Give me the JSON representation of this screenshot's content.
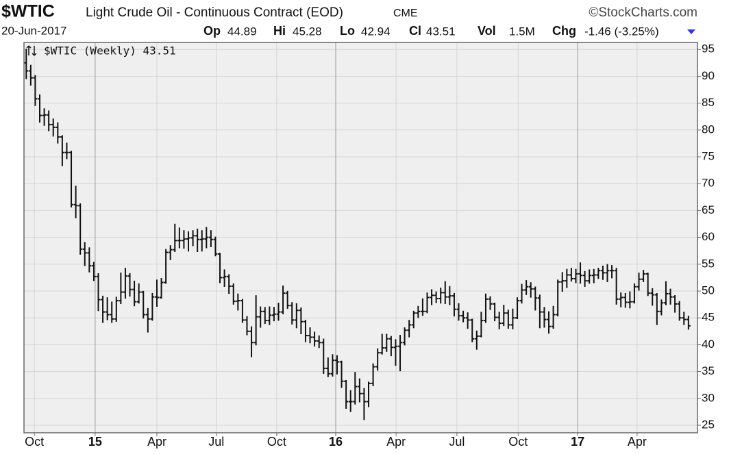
{
  "chart_data": {
    "type": "ohlc",
    "symbol": "$WTIC",
    "title": "Light Crude Oil - Continuous Contract (EOD)",
    "exchange": "CME",
    "source": "©StockCharts.com",
    "quote": {
      "date": "20-Jun-2017",
      "items": [
        {
          "label": "Op",
          "value": 44.89
        },
        {
          "label": "Hi",
          "value": 45.28
        },
        {
          "label": "Lo",
          "value": 42.94
        },
        {
          "label": "Cl",
          "value": 43.51
        },
        {
          "label": "Vol",
          "value": "1.5M"
        },
        {
          "label": "Chg",
          "value": "-1.46 (-3.25%)"
        }
      ]
    },
    "legend": "$WTIC (Weekly) 43.51",
    "color": "#111111",
    "grid": true,
    "xlim": [
      0,
      149.5
    ],
    "ylim": [
      23.6,
      96.3
    ],
    "yticks": [
      25,
      30,
      35,
      40,
      45,
      50,
      55,
      60,
      65,
      70,
      75,
      80,
      85,
      90,
      95
    ],
    "xticks": [
      {
        "value": 2.3,
        "label": "Oct"
      },
      {
        "value": 15.8,
        "label": "15"
      },
      {
        "value": 29.5,
        "label": "Apr"
      },
      {
        "value": 42.7,
        "label": "Jul"
      },
      {
        "value": 56.1,
        "label": "Oct"
      },
      {
        "value": 69.2,
        "label": "16"
      },
      {
        "value": 82.6,
        "label": "Apr"
      },
      {
        "value": 96.1,
        "label": "Jul"
      },
      {
        "value": 109.7,
        "label": "Oct"
      },
      {
        "value": 122.9,
        "label": "17"
      },
      {
        "value": 136.1,
        "label": "Apr"
      }
    ],
    "open": [
      92.5,
      91.0,
      89.7,
      85.8,
      82.7,
      82.8,
      81.0,
      80.5,
      78.7,
      75.8,
      75.8,
      66.1,
      65.9,
      57.8,
      57.1,
      54.7,
      52.7,
      48.4,
      46.1,
      45.6,
      44.8,
      48.2,
      49.8,
      52.8,
      50.3,
      48.0,
      49.8,
      45.6,
      44.8,
      48.9,
      48.8,
      51.6,
      57.2,
      57.7,
      59.4,
      59.4,
      59.7,
      59.9,
      60.3,
      59.6,
      59.7,
      60.0,
      59.6,
      56.9,
      52.5,
      52.7,
      50.9,
      48.1,
      48.2,
      44.6,
      42.5,
      40.4,
      45.2,
      46.2,
      44.5,
      45.5,
      45.7,
      46.1,
      49.6,
      47.3,
      44.6,
      46.4,
      44.3,
      41.7,
      41.4,
      40.7,
      40.4,
      35.6,
      34.6,
      37.1,
      36.8,
      33.2,
      29.4,
      29.4,
      32.2,
      30.9,
      29.4,
      32.8,
      35.9,
      38.5,
      39.4,
      41.1,
      39.5,
      39.7,
      40.4,
      42.7,
      43.7,
      45.9,
      46.2,
      46.2,
      48.8,
      49.2,
      48.6,
      49.7,
      48.9,
      49.1,
      46.6,
      45.4,
      45.0,
      44.6,
      41.1,
      41.6,
      44.5,
      48.5,
      47.6,
      45.1,
      44.0,
      45.9,
      43.7,
      45.0,
      48.2,
      50.2,
      50.8,
      50.4,
      48.7,
      46.1,
      44.7,
      43.4,
      45.6,
      51.7,
      51.9,
      53.0,
      52.3,
      53.2,
      52.9,
      51.9,
      52.9,
      53.0,
      53.8,
      53.4,
      53.8,
      53.8,
      48.5,
      48.8,
      47.9,
      48.0,
      50.8,
      52.2,
      53.2,
      49.6,
      49.3,
      46.2,
      47.8,
      49.5,
      48.9,
      47.6,
      45.0,
      44.7
    ],
    "high": [
      95.0,
      92.0,
      90.1,
      86.5,
      83.9,
      83.5,
      82.0,
      81.3,
      78.9,
      77.5,
      76.0,
      69.5,
      66.2,
      59.0,
      58.0,
      55.3,
      53.2,
      49.0,
      48.7,
      47.9,
      48.8,
      53.3,
      54.2,
      53.2,
      51.8,
      51.3,
      49.9,
      46.7,
      49.5,
      52.0,
      52.3,
      57.7,
      58.4,
      62.4,
      61.7,
      61.2,
      61.0,
      61.2,
      61.5,
      61.2,
      61.8,
      61.2,
      60.0,
      57.0,
      53.9,
      53.0,
      51.3,
      49.4,
      48.4,
      45.2,
      43.3,
      49.1,
      47.0,
      46.9,
      47.0,
      46.9,
      47.7,
      50.9,
      49.9,
      47.8,
      47.6,
      46.8,
      44.5,
      43.1,
      42.3,
      41.6,
      41.0,
      37.5,
      38.1,
      37.9,
      36.9,
      33.3,
      31.4,
      34.8,
      33.6,
      31.8,
      33.0,
      36.4,
      39.2,
      41.9,
      41.9,
      41.5,
      40.9,
      41.7,
      43.1,
      44.5,
      46.2,
      47.1,
      48.5,
      49.6,
      50.2,
      49.8,
      50.5,
      51.7,
      50.8,
      49.5,
      47.6,
      46.2,
      45.9,
      44.7,
      42.5,
      46.0,
      49.4,
      48.9,
      47.7,
      46.0,
      47.3,
      46.4,
      46.6,
      48.7,
      51.2,
      51.9,
      51.5,
      50.7,
      49.2,
      46.9,
      46.1,
      47.1,
      52.0,
      53.4,
      54.0,
      54.2,
      54.0,
      55.2,
      53.6,
      53.9,
      54.0,
      54.2,
      54.6,
      54.9,
      54.7,
      54.2,
      49.6,
      49.5,
      49.8,
      51.3,
      53.3,
      53.8,
      53.3,
      50.4,
      49.5,
      48.3,
      51.7,
      50.3,
      49.1,
      48.0,
      46.0,
      45.28
    ],
    "low": [
      89.6,
      88.4,
      84.6,
      81.5,
      80.9,
      79.9,
      78.9,
      77.6,
      73.4,
      74.7,
      65.7,
      63.7,
      56.9,
      54.8,
      53.6,
      52.0,
      46.4,
      44.2,
      44.7,
      44.2,
      44.4,
      47.7,
      48.7,
      49.1,
      47.3,
      47.8,
      45.0,
      42.4,
      44.6,
      47.2,
      48.7,
      51.5,
      55.9,
      57.4,
      58.1,
      58.0,
      57.5,
      58.5,
      57.4,
      57.5,
      58.1,
      58.3,
      56.6,
      51.6,
      50.9,
      49.6,
      47.6,
      46.5,
      44.2,
      41.9,
      37.8,
      40.0,
      43.3,
      44.0,
      43.8,
      44.5,
      44.6,
      45.8,
      46.8,
      43.9,
      43.2,
      42.1,
      40.6,
      40.4,
      39.8,
      39.5,
      34.7,
      34.1,
      34.2,
      34.6,
      32.1,
      28.2,
      27.6,
      29.0,
      29.4,
      26.1,
      28.5,
      32.4,
      35.3,
      38.3,
      38.8,
      38.0,
      36.2,
      35.2,
      40.0,
      41.5,
      43.2,
      45.1,
      45.5,
      46.0,
      47.5,
      47.9,
      47.8,
      47.7,
      47.5,
      45.4,
      44.6,
      44.3,
      43.1,
      40.6,
      39.2,
      41.5,
      44.2,
      46.6,
      44.5,
      43.0,
      43.6,
      43.1,
      43.0,
      44.9,
      47.8,
      49.4,
      48.9,
      46.5,
      43.2,
      43.3,
      42.2,
      43.1,
      45.4,
      50.0,
      50.7,
      51.9,
      51.6,
      51.5,
      50.9,
      51.5,
      51.6,
      52.4,
      52.2,
      51.8,
      52.5,
      47.6,
      47.1,
      47.0,
      46.9,
      47.8,
      50.2,
      51.8,
      49.2,
      47.4,
      43.8,
      45.6,
      47.5,
      47.6,
      46.1,
      44.6,
      43.8,
      42.94
    ],
    "close": [
      91.0,
      89.7,
      85.8,
      82.7,
      82.8,
      81.0,
      80.5,
      78.7,
      75.8,
      75.8,
      66.1,
      65.9,
      57.8,
      57.1,
      54.7,
      52.7,
      48.4,
      46.1,
      45.6,
      44.8,
      48.2,
      49.8,
      52.8,
      50.3,
      48.0,
      49.8,
      45.6,
      44.8,
      48.9,
      48.8,
      51.6,
      57.2,
      57.7,
      59.4,
      59.4,
      59.7,
      59.9,
      60.3,
      59.6,
      59.7,
      60.0,
      59.6,
      56.9,
      52.5,
      52.7,
      50.9,
      48.1,
      48.2,
      44.6,
      42.5,
      40.4,
      45.2,
      46.2,
      44.5,
      45.5,
      45.7,
      46.1,
      49.6,
      47.3,
      44.6,
      46.4,
      44.3,
      41.7,
      41.4,
      40.7,
      40.4,
      35.6,
      34.6,
      37.1,
      36.8,
      33.2,
      29.4,
      29.4,
      32.2,
      30.9,
      29.4,
      32.8,
      35.9,
      38.5,
      39.4,
      41.1,
      39.5,
      39.7,
      40.4,
      42.7,
      43.7,
      45.9,
      46.2,
      46.2,
      48.8,
      49.2,
      48.6,
      49.7,
      48.9,
      49.1,
      46.6,
      45.4,
      45.0,
      44.6,
      41.1,
      41.6,
      44.5,
      48.5,
      47.6,
      45.1,
      44.0,
      45.9,
      43.7,
      45.0,
      48.2,
      50.2,
      50.8,
      50.4,
      48.7,
      46.1,
      44.7,
      43.4,
      45.6,
      51.7,
      51.9,
      53.0,
      52.3,
      53.2,
      52.9,
      51.9,
      52.9,
      53.0,
      53.8,
      53.4,
      53.8,
      53.8,
      48.5,
      48.8,
      47.9,
      48.0,
      50.8,
      52.2,
      53.2,
      49.6,
      49.3,
      46.2,
      47.8,
      49.5,
      48.9,
      47.6,
      45.0,
      44.7,
      43.51
    ]
  }
}
